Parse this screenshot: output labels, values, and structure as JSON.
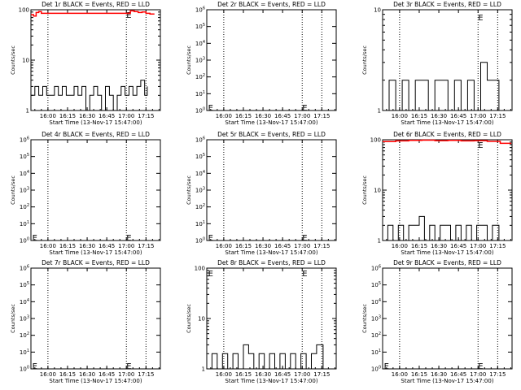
{
  "chart_data": [
    {
      "type": "line",
      "title": "Det 1r BLACK = Events, RED = LLD",
      "xlabel": "Start Time (13-Nov-17 15:47:00)",
      "ylabel": "Counts/sec",
      "xlim": [
        "15:47:00",
        "17:26:00"
      ],
      "yscale": "log",
      "ylim": [
        1,
        100
      ],
      "y_ticks": [
        "1",
        "10",
        "100"
      ],
      "x_ticks": [
        "16:00",
        "16:15",
        "16:30",
        "16:45",
        "17:00",
        "17:15"
      ],
      "dotted_vlines": [
        "16:00",
        "17:00",
        "17:15"
      ],
      "markers": [
        {
          "label": "E",
          "time": "17:00",
          "y": 80
        }
      ],
      "series": [
        {
          "color": "#000000",
          "x": [
            "15:47",
            "15:50",
            "15:53",
            "15:56",
            "15:59",
            "16:02",
            "16:05",
            "16:08",
            "16:11",
            "16:14",
            "16:17",
            "16:20",
            "16:23",
            "16:26",
            "16:29",
            "16:32",
            "16:35",
            "16:38",
            "16:41",
            "16:44",
            "16:47",
            "16:50",
            "16:53",
            "16:56",
            "16:59",
            "17:02",
            "17:05",
            "17:08",
            "17:11",
            "17:14",
            "17:16"
          ],
          "values": [
            2,
            3,
            2,
            3,
            2,
            2,
            3,
            2,
            3,
            2,
            2,
            3,
            2,
            3,
            1,
            2,
            3,
            2,
            1,
            3,
            2,
            1,
            2,
            3,
            2,
            3,
            2,
            3,
            4,
            2,
            3
          ]
        },
        {
          "color": "#ff0000",
          "x": [
            "15:47",
            "15:49",
            "15:51",
            "15:53",
            "15:55",
            "17:03",
            "17:06",
            "17:09",
            "17:12",
            "17:15",
            "17:18",
            "17:21"
          ],
          "values": [
            80,
            75,
            88,
            92,
            85,
            95,
            92,
            88,
            90,
            85,
            82,
            80
          ]
        }
      ]
    },
    {
      "type": "line",
      "title": "Det 2r BLACK = Events, RED = LLD",
      "xlabel": "Start Time (13-Nov-17 15:47:00)",
      "ylabel": "Counts/sec",
      "xlim": [
        "15:47:00",
        "17:26:00"
      ],
      "yscale": "log",
      "ylim": [
        1,
        1000000
      ],
      "y_ticks": [
        "10^0",
        "10^1",
        "10^2",
        "10^3",
        "10^4",
        "10^5",
        "10^6"
      ],
      "x_ticks": [
        "16:00",
        "16:15",
        "16:30",
        "16:45",
        "17:00",
        "17:15"
      ],
      "dotted_vlines": [
        "16:00",
        "17:00",
        "17:15"
      ],
      "markers": [
        {
          "label": "E",
          "time": "15:48",
          "y": 1.6
        },
        {
          "label": "E",
          "time": "17:00",
          "y": 1.6
        }
      ],
      "series": []
    },
    {
      "type": "line",
      "title": "Det 3r BLACK = Events, RED = LLD",
      "xlabel": "Start Time (13-Nov-17 15:47:00)",
      "ylabel": "Counts/sec",
      "xlim": [
        "15:47:00",
        "17:26:00"
      ],
      "yscale": "log",
      "ylim": [
        1,
        10
      ],
      "y_ticks": [
        "1",
        "10"
      ],
      "x_ticks": [
        "16:00",
        "16:15",
        "16:30",
        "16:45",
        "17:00",
        "17:15"
      ],
      "dotted_vlines": [
        "16:00",
        "17:00",
        "17:15"
      ],
      "markers": [
        {
          "label": "E",
          "time": "17:00",
          "y": 8.5
        }
      ],
      "series": [
        {
          "color": "#000000",
          "x": [
            "15:47",
            "15:52",
            "15:57",
            "16:02",
            "16:07",
            "16:12",
            "16:17",
            "16:22",
            "16:27",
            "16:32",
            "16:37",
            "16:42",
            "16:47",
            "16:52",
            "16:57",
            "17:02",
            "17:07",
            "17:12",
            "17:16"
          ],
          "values": [
            1,
            2,
            1,
            2,
            1,
            2,
            2,
            1,
            2,
            2,
            1,
            2,
            1,
            2,
            1,
            3,
            2,
            2,
            1
          ]
        }
      ]
    },
    {
      "type": "line",
      "title": "Det 4r BLACK = Events, RED = LLD",
      "xlabel": "Start Time (13-Nov-17 15:47:00)",
      "ylabel": "Counts/sec",
      "xlim": [
        "15:47:00",
        "17:26:00"
      ],
      "yscale": "log",
      "ylim": [
        1,
        1000000
      ],
      "y_ticks": [
        "10^0",
        "10^1",
        "10^2",
        "10^3",
        "10^4",
        "10^5",
        "10^6"
      ],
      "x_ticks": [
        "16:00",
        "16:15",
        "16:30",
        "16:45",
        "17:00",
        "17:15"
      ],
      "dotted_vlines": [
        "16:00",
        "17:00",
        "17:15"
      ],
      "markers": [
        {
          "label": "E",
          "time": "15:48",
          "y": 1.6
        },
        {
          "label": "E",
          "time": "17:00",
          "y": 1.6
        }
      ],
      "series": []
    },
    {
      "type": "line",
      "title": "Det 5r BLACK = Events, RED = LLD",
      "xlabel": "Start Time (13-Nov-17 15:47:00)",
      "ylabel": "Counts/sec",
      "xlim": [
        "15:47:00",
        "17:26:00"
      ],
      "yscale": "log",
      "ylim": [
        1,
        1000000
      ],
      "y_ticks": [
        "10^0",
        "10^1",
        "10^2",
        "10^3",
        "10^4",
        "10^5",
        "10^6"
      ],
      "x_ticks": [
        "16:00",
        "16:15",
        "16:30",
        "16:45",
        "17:00",
        "17:15"
      ],
      "dotted_vlines": [
        "16:00",
        "17:00",
        "17:15"
      ],
      "markers": [
        {
          "label": "E",
          "time": "15:48",
          "y": 1.6
        },
        {
          "label": "E",
          "time": "17:00",
          "y": 1.6
        }
      ],
      "series": []
    },
    {
      "type": "line",
      "title": "Det 6r BLACK = Events, RED = LLD",
      "xlabel": "Start Time (13-Nov-17 15:47:00)",
      "ylabel": "Counts/sec",
      "xlim": [
        "15:47:00",
        "17:26:00"
      ],
      "yscale": "log",
      "ylim": [
        1,
        100
      ],
      "y_ticks": [
        "1",
        "10",
        "100"
      ],
      "x_ticks": [
        "16:00",
        "16:15",
        "16:30",
        "16:45",
        "17:00",
        "17:15"
      ],
      "dotted_vlines": [
        "16:00",
        "17:00",
        "17:15"
      ],
      "markers": [
        {
          "label": "E",
          "time": "17:00",
          "y": 80
        }
      ],
      "series": [
        {
          "color": "#000000",
          "x": [
            "15:47",
            "15:51",
            "15:55",
            "15:59",
            "16:03",
            "16:07",
            "16:11",
            "16:15",
            "16:19",
            "16:23",
            "16:27",
            "16:31",
            "16:35",
            "16:39",
            "16:43",
            "16:47",
            "16:51",
            "16:55",
            "16:59",
            "17:03",
            "17:07",
            "17:11",
            "17:16"
          ],
          "values": [
            1,
            2,
            1,
            2,
            1,
            2,
            2,
            3,
            1,
            2,
            1,
            2,
            2,
            1,
            2,
            1,
            2,
            1,
            2,
            2,
            1,
            2,
            1
          ]
        },
        {
          "color": "#ff0000",
          "x": [
            "15:47",
            "15:57",
            "16:07",
            "16:17",
            "16:27",
            "16:37",
            "16:47",
            "16:57",
            "17:07",
            "17:17",
            "17:25"
          ],
          "values": [
            92,
            95,
            97,
            98,
            96,
            97,
            95,
            96,
            93,
            85,
            82
          ]
        }
      ]
    },
    {
      "type": "line",
      "title": "Det 7r BLACK = Events, RED = LLD",
      "xlabel": "Start Time (13-Nov-17 15:47:00)",
      "ylabel": "Counts/sec",
      "xlim": [
        "15:47:00",
        "17:26:00"
      ],
      "yscale": "log",
      "ylim": [
        1,
        1000000
      ],
      "y_ticks": [
        "10^0",
        "10^1",
        "10^2",
        "10^3",
        "10^4",
        "10^5",
        "10^6"
      ],
      "x_ticks": [
        "16:00",
        "16:15",
        "16:30",
        "16:45",
        "17:00",
        "17:15"
      ],
      "dotted_vlines": [
        "16:00",
        "17:00",
        "17:15"
      ],
      "markers": [
        {
          "label": "E",
          "time": "15:48",
          "y": 1.6
        },
        {
          "label": "E",
          "time": "17:00",
          "y": 1.6
        }
      ],
      "series": []
    },
    {
      "type": "line",
      "title": "Det 8r BLACK = Events, RED = LLD",
      "xlabel": "Start Time (13-Nov-17 15:47:00)",
      "ylabel": "Counts/sec",
      "xlim": [
        "15:47:00",
        "17:26:00"
      ],
      "yscale": "log",
      "ylim": [
        1,
        100
      ],
      "y_ticks": [
        "1",
        "10",
        "100"
      ],
      "x_ticks": [
        "16:00",
        "16:15",
        "16:30",
        "16:45",
        "17:00",
        "17:15"
      ],
      "dotted_vlines": [
        "16:00",
        "17:00",
        "17:15"
      ],
      "markers": [
        {
          "label": "E",
          "time": "15:48",
          "y": 80
        },
        {
          "label": "E",
          "time": "17:00",
          "y": 80
        }
      ],
      "series": [
        {
          "color": "#000000",
          "x": [
            "15:47",
            "15:51",
            "15:55",
            "15:59",
            "16:03",
            "16:07",
            "16:11",
            "16:15",
            "16:19",
            "16:23",
            "16:27",
            "16:31",
            "16:35",
            "16:39",
            "16:43",
            "16:47",
            "16:51",
            "16:55",
            "16:59",
            "17:03",
            "17:07",
            "17:11",
            "17:16"
          ],
          "values": [
            1,
            2,
            1,
            2,
            1,
            2,
            1,
            3,
            2,
            1,
            2,
            1,
            2,
            1,
            2,
            1,
            2,
            1,
            2,
            1,
            2,
            3,
            1
          ]
        }
      ]
    },
    {
      "type": "line",
      "title": "Det 9r BLACK = Events, RED = LLD",
      "xlabel": "Start Time (13-Nov-17 15:47:00)",
      "ylabel": "Counts/sec",
      "xlim": [
        "15:47:00",
        "17:26:00"
      ],
      "yscale": "log",
      "ylim": [
        1,
        1000000
      ],
      "y_ticks": [
        "10^0",
        "10^1",
        "10^2",
        "10^3",
        "10^4",
        "10^5",
        "10^6"
      ],
      "x_ticks": [
        "16:00",
        "16:15",
        "16:30",
        "16:45",
        "17:00",
        "17:15"
      ],
      "dotted_vlines": [
        "16:00",
        "17:00",
        "17:15"
      ],
      "markers": [
        {
          "label": "E",
          "time": "15:48",
          "y": 1.6
        },
        {
          "label": "E",
          "time": "17:00",
          "y": 1.6
        }
      ],
      "series": []
    }
  ]
}
